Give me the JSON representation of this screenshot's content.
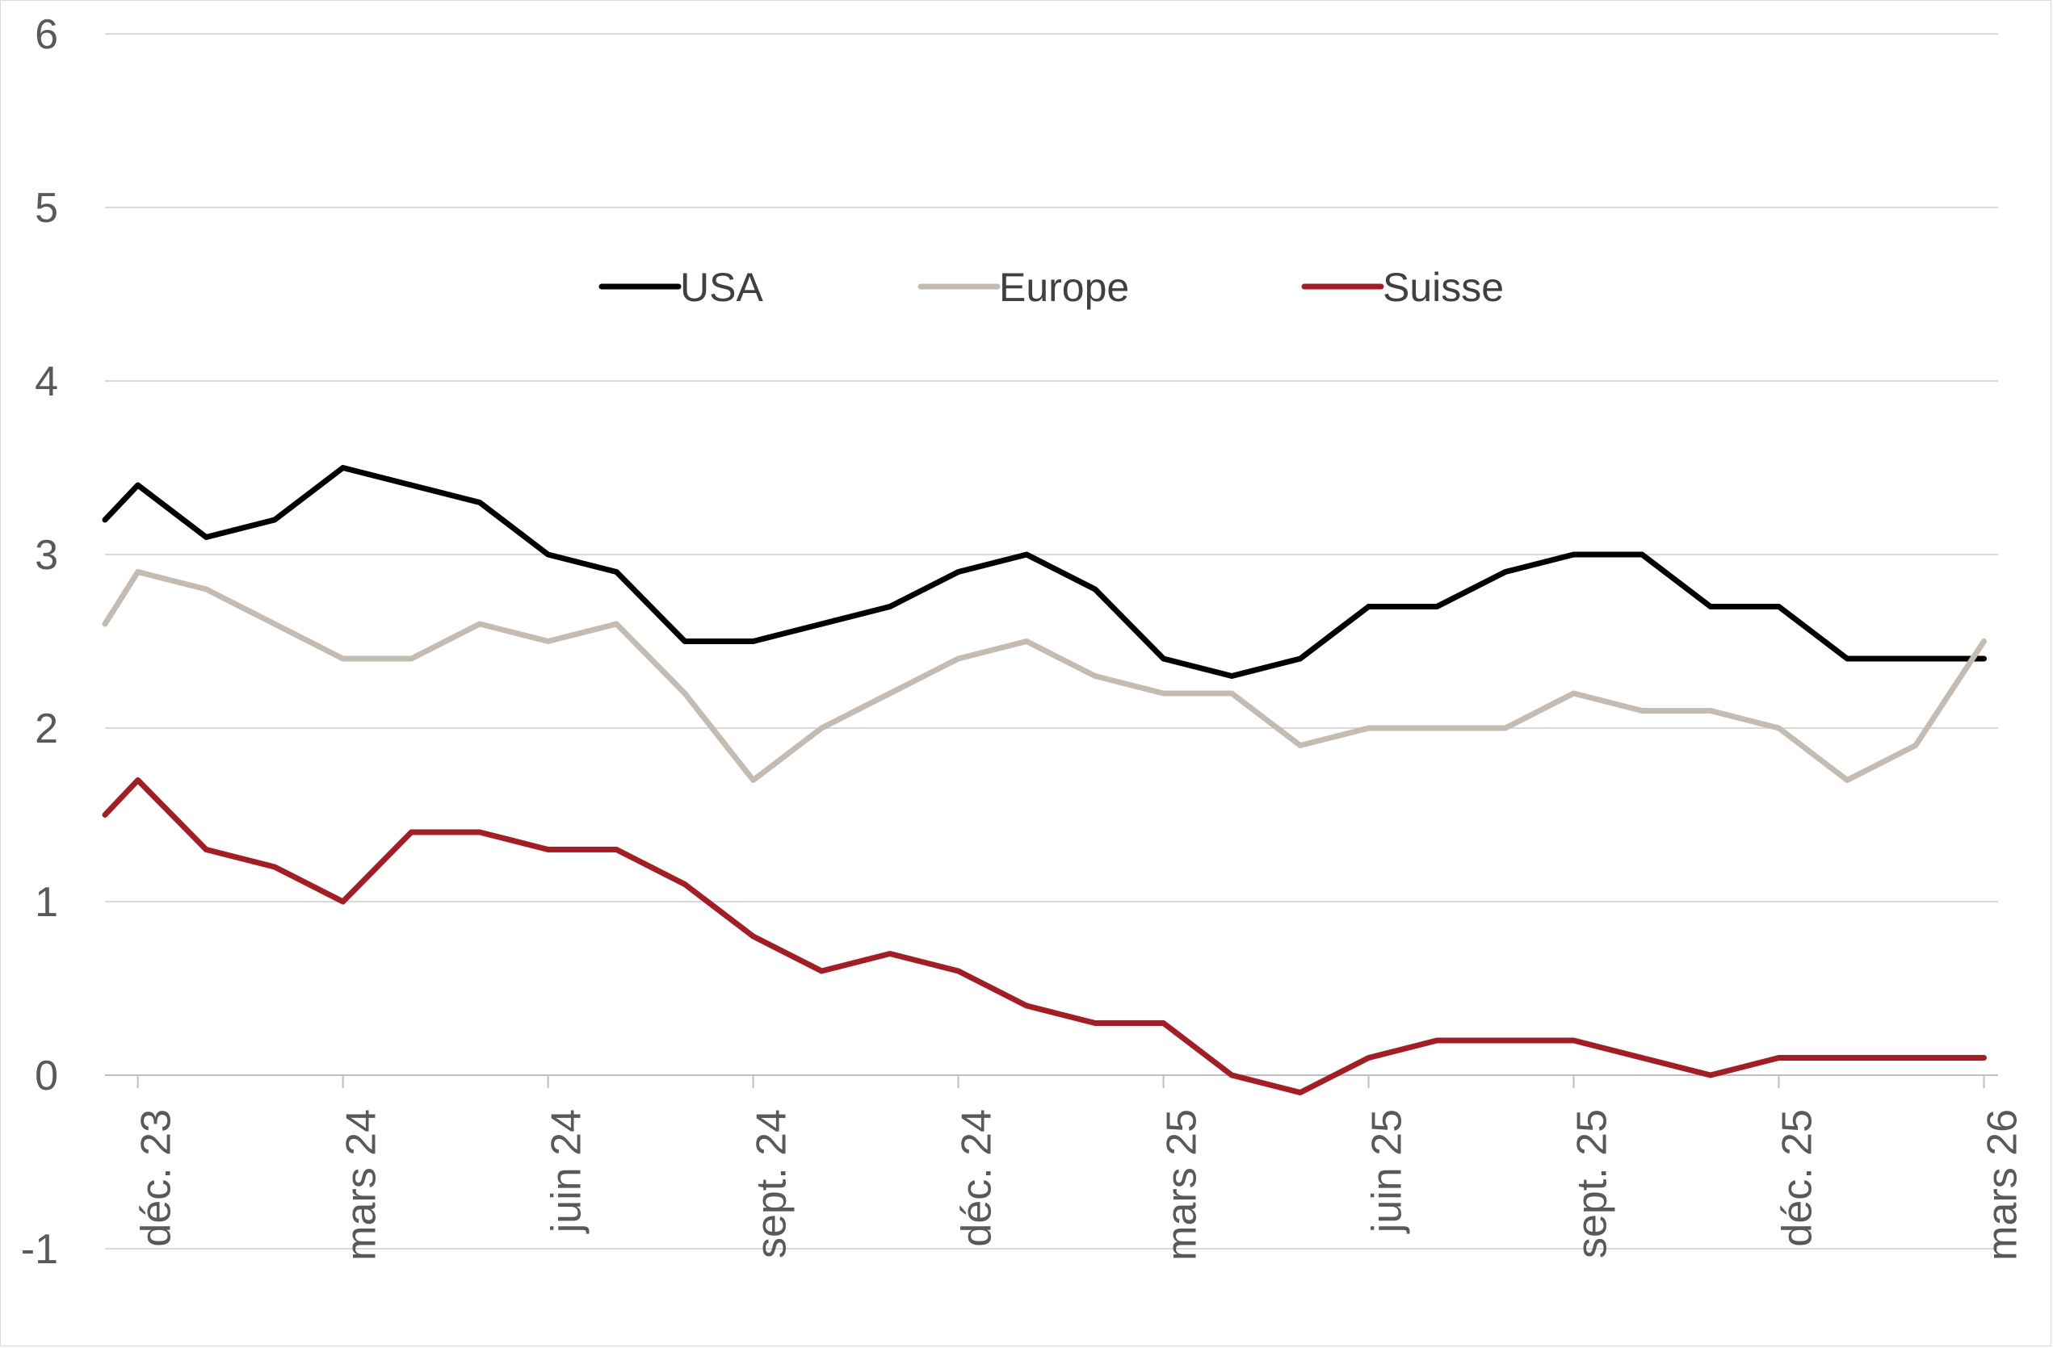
{
  "chart_data": {
    "type": "line",
    "title": "",
    "xlabel": "",
    "ylabel": "",
    "ylim": [
      -1,
      6
    ],
    "yticks": [
      -1,
      0,
      1,
      2,
      3,
      4,
      5,
      6
    ],
    "grid": true,
    "legend_position": "top-center",
    "x": [
      "2023-11",
      "2023-12",
      "2024-01",
      "2024-02",
      "2024-03",
      "2024-04",
      "2024-05",
      "2024-06",
      "2024-07",
      "2024-08",
      "2024-09",
      "2024-10",
      "2024-11",
      "2024-12",
      "2025-01",
      "2025-02",
      "2025-03",
      "2025-04",
      "2025-05",
      "2025-06",
      "2025-07",
      "2025-08",
      "2025-09",
      "2025-10",
      "2025-11",
      "2025-12",
      "2026-01",
      "2026-02",
      "2026-03"
    ],
    "x_tick_labels": [
      "déc. 23",
      "mars 24",
      "juin 24",
      "sept. 24",
      "déc. 24",
      "mars 25",
      "juin 25",
      "sept. 25",
      "déc. 25",
      "mars 26"
    ],
    "series": [
      {
        "name": "USA",
        "color": "#000000",
        "values": [
          3.2,
          3.4,
          3.1,
          3.2,
          3.5,
          3.4,
          3.3,
          3.0,
          2.9,
          2.5,
          2.5,
          2.6,
          2.7,
          2.9,
          3.0,
          2.8,
          2.4,
          2.3,
          2.4,
          2.7,
          2.7,
          2.9,
          3.0,
          3.0,
          2.7,
          2.7,
          2.4,
          2.4,
          2.4
        ]
      },
      {
        "name": "Europe",
        "color": "#c4bcb2",
        "values": [
          2.6,
          2.9,
          2.8,
          2.6,
          2.4,
          2.4,
          2.6,
          2.5,
          2.6,
          2.2,
          1.7,
          2.0,
          2.2,
          2.4,
          2.5,
          2.3,
          2.2,
          2.2,
          1.9,
          2.0,
          2.0,
          2.0,
          2.2,
          2.1,
          2.1,
          2.0,
          1.7,
          1.9,
          2.5
        ]
      },
      {
        "name": "Suisse",
        "color": "#a51d23",
        "values": [
          1.5,
          1.7,
          1.3,
          1.2,
          1.0,
          1.4,
          1.4,
          1.3,
          1.3,
          1.1,
          0.8,
          0.6,
          0.7,
          0.6,
          0.4,
          0.3,
          0.3,
          0.0,
          -0.1,
          0.1,
          0.2,
          0.2,
          0.2,
          0.1,
          0.0,
          0.1,
          0.1,
          0.1,
          0.1
        ]
      }
    ]
  }
}
